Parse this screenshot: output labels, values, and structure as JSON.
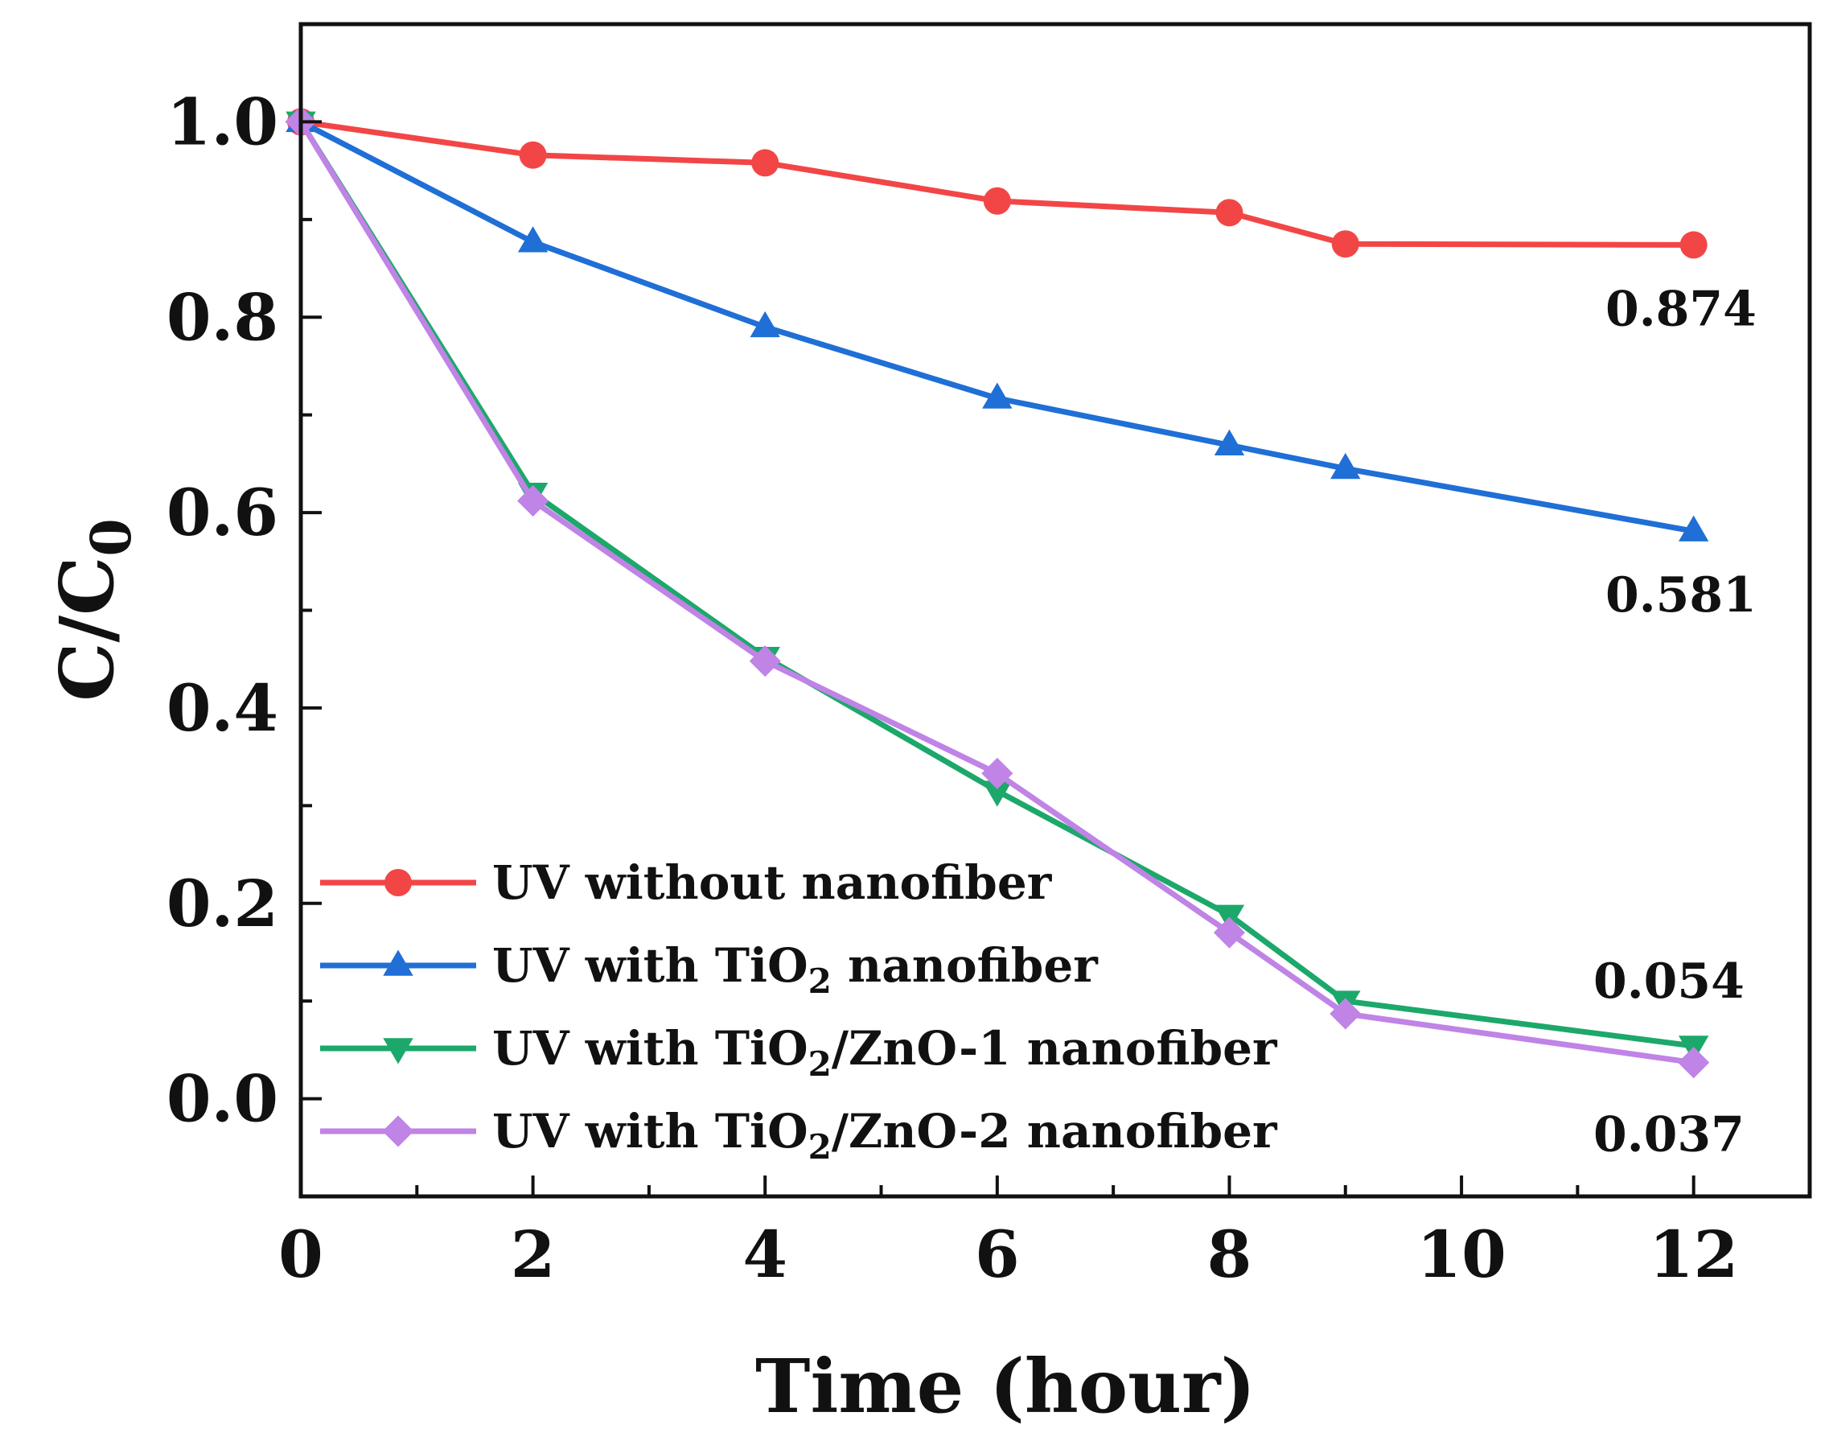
{
  "chart_data": {
    "type": "line",
    "title": "",
    "xlabel": "Time (hour)",
    "ylabel": {
      "main": "C/C",
      "sub": "0"
    },
    "xlim": [
      0,
      13
    ],
    "ylim": [
      -0.1,
      1.1
    ],
    "x_ticks": [
      0,
      2,
      4,
      6,
      8,
      10,
      12
    ],
    "x_tick_labels": [
      "0",
      "2",
      "4",
      "6",
      "8",
      "10",
      "12"
    ],
    "y_ticks": [
      0.0,
      0.2,
      0.4,
      0.6,
      0.8,
      1.0
    ],
    "y_tick_labels": [
      "0.0",
      "0.2",
      "0.4",
      "0.6",
      "0.8",
      "1.0"
    ],
    "grid": false,
    "legend_position": "bottom-left",
    "series": [
      {
        "name": "UV without nanofiber",
        "legend": {
          "prefix": "UV without nanofiber",
          "sub": "",
          "suffix": ""
        },
        "color": "#f24646",
        "marker": "circle",
        "x": [
          0,
          2,
          4,
          6,
          8,
          9,
          12
        ],
        "values": [
          1.0,
          0.966,
          0.958,
          0.919,
          0.907,
          0.875,
          0.874
        ],
        "end_label": "0.874"
      },
      {
        "name": "UV with TiO2 nanofiber",
        "legend": {
          "prefix": "UV with TiO",
          "sub": "2",
          "suffix": " nanofiber"
        },
        "color": "#1f6fd6",
        "marker": "triangle-up",
        "x": [
          0,
          2,
          4,
          6,
          8,
          9,
          12
        ],
        "values": [
          1.0,
          0.877,
          0.79,
          0.717,
          0.669,
          0.645,
          0.581
        ],
        "end_label": "0.581"
      },
      {
        "name": "UV with TiO2/ZnO-1 nanofiber",
        "legend": {
          "prefix": "UV with TiO",
          "sub": "2",
          "suffix": "/ZnO-1 nanofiber"
        },
        "color": "#1ca86a",
        "marker": "triangle-down",
        "x": [
          0,
          2,
          4,
          6,
          8,
          9,
          12
        ],
        "values": [
          1.0,
          0.62,
          0.452,
          0.315,
          0.188,
          0.1,
          0.054
        ],
        "end_label": "0.054"
      },
      {
        "name": "UV with TiO2/ZnO-2 nanofiber",
        "legend": {
          "prefix": "UV with TiO",
          "sub": "2",
          "suffix": "/ZnO-2 nanofiber"
        },
        "color": "#c083e6",
        "marker": "diamond",
        "x": [
          0,
          2,
          4,
          6,
          8,
          9,
          12
        ],
        "values": [
          1.0,
          0.612,
          0.448,
          0.333,
          0.17,
          0.087,
          0.037
        ],
        "end_label": "0.037"
      }
    ]
  }
}
